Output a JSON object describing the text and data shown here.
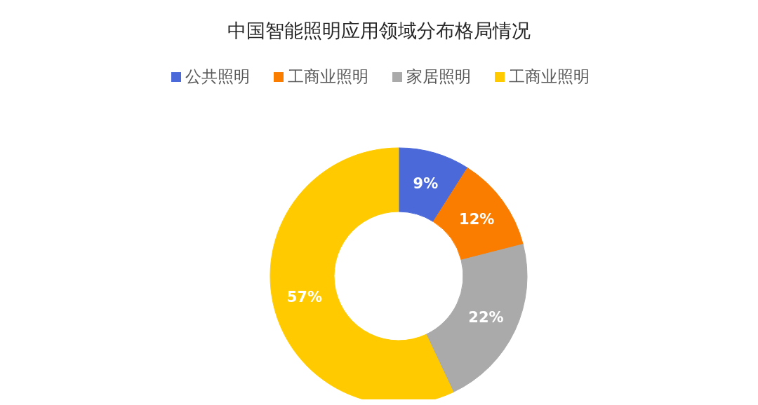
{
  "chart_data": {
    "type": "donut",
    "title": "中国智能照明应用领域分布格局情况",
    "categories": [
      "公共照明",
      "工商业照明",
      "家居照明",
      "工商业照明"
    ],
    "values": [
      9,
      12,
      22,
      57
    ],
    "colors": [
      "#4b69d9",
      "#fb7d00",
      "#aaaaaa",
      "#ffcb00"
    ],
    "value_labels": [
      "9%",
      "12%",
      "22%",
      "57%"
    ],
    "legend": "top"
  }
}
